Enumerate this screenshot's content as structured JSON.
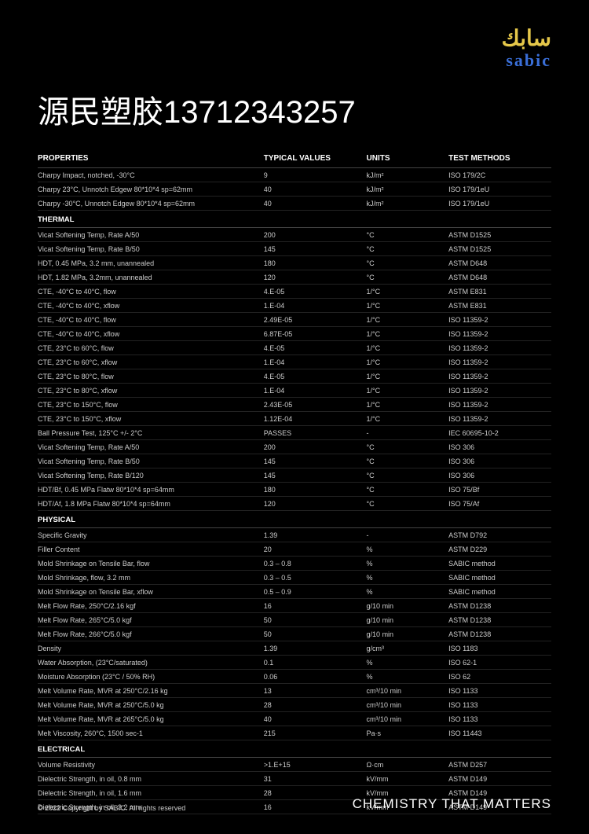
{
  "logo": {
    "arabic": "سابك",
    "latin": "sabic"
  },
  "title": "源民塑胶13712343257",
  "headers": {
    "properties": "PROPERTIES",
    "values": "TYPICAL VALUES",
    "units": "UNITS",
    "methods": "TEST METHODS"
  },
  "sections": [
    {
      "label": null,
      "rows": [
        {
          "p": "Charpy Impact, notched, -30°C",
          "v": "9",
          "u": "kJ/m²",
          "m": "ISO 179/2C"
        },
        {
          "p": "Charpy 23°C, Unnotch Edgew 80*10*4 sp=62mm",
          "v": "40",
          "u": "kJ/m²",
          "m": "ISO 179/1eU"
        },
        {
          "p": "Charpy -30°C, Unnotch Edgew 80*10*4 sp=62mm",
          "v": "40",
          "u": "kJ/m²",
          "m": "ISO 179/1eU"
        }
      ]
    },
    {
      "label": "THERMAL",
      "rows": [
        {
          "p": "Vicat Softening Temp, Rate A/50",
          "v": "200",
          "u": "°C",
          "m": "ASTM D1525"
        },
        {
          "p": "Vicat Softening Temp, Rate B/50",
          "v": "145",
          "u": "°C",
          "m": "ASTM D1525"
        },
        {
          "p": "HDT, 0.45 MPa, 3.2 mm, unannealed",
          "v": "180",
          "u": "°C",
          "m": "ASTM D648"
        },
        {
          "p": "HDT, 1.82 MPa, 3.2mm, unannealed",
          "v": "120",
          "u": "°C",
          "m": "ASTM D648"
        },
        {
          "p": "CTE, -40°C to 40°C, flow",
          "v": "4.E-05",
          "u": "1/°C",
          "m": "ASTM E831"
        },
        {
          "p": "CTE, -40°C to 40°C, xflow",
          "v": "1.E-04",
          "u": "1/°C",
          "m": "ASTM E831"
        },
        {
          "p": "CTE, -40°C to 40°C, flow",
          "v": "2.49E-05",
          "u": "1/°C",
          "m": "ISO 11359-2"
        },
        {
          "p": "CTE, -40°C to 40°C, xflow",
          "v": "6.87E-05",
          "u": "1/°C",
          "m": "ISO 11359-2"
        },
        {
          "p": "CTE, 23°C to 60°C, flow",
          "v": "4.E-05",
          "u": "1/°C",
          "m": "ISO 11359-2"
        },
        {
          "p": "CTE, 23°C to 60°C, xflow",
          "v": "1.E-04",
          "u": "1/°C",
          "m": "ISO 11359-2"
        },
        {
          "p": "CTE, 23°C to 80°C, flow",
          "v": "4.E-05",
          "u": "1/°C",
          "m": "ISO 11359-2"
        },
        {
          "p": "CTE, 23°C to 80°C, xflow",
          "v": "1.E-04",
          "u": "1/°C",
          "m": "ISO 11359-2"
        },
        {
          "p": "CTE, 23°C to 150°C, flow",
          "v": "2.43E-05",
          "u": "1/°C",
          "m": "ISO 11359-2"
        },
        {
          "p": "CTE, 23°C to 150°C, xflow",
          "v": "1.12E-04",
          "u": "1/°C",
          "m": "ISO 11359-2"
        },
        {
          "p": "Ball Pressure Test, 125°C +/- 2°C",
          "v": "PASSES",
          "u": "-",
          "m": "IEC 60695-10-2"
        },
        {
          "p": "Vicat Softening Temp, Rate A/50",
          "v": "200",
          "u": "°C",
          "m": "ISO 306"
        },
        {
          "p": "Vicat Softening Temp, Rate B/50",
          "v": "145",
          "u": "°C",
          "m": "ISO 306"
        },
        {
          "p": "Vicat Softening Temp, Rate B/120",
          "v": "145",
          "u": "°C",
          "m": "ISO 306"
        },
        {
          "p": "HDT/Bf, 0.45 MPa Flatw 80*10*4 sp=64mm",
          "v": "180",
          "u": "°C",
          "m": "ISO 75/Bf"
        },
        {
          "p": "HDT/Af, 1.8 MPa Flatw 80*10*4 sp=64mm",
          "v": "120",
          "u": "°C",
          "m": "ISO 75/Af"
        }
      ]
    },
    {
      "label": "PHYSICAL",
      "rows": [
        {
          "p": "Specific Gravity",
          "v": "1.39",
          "u": "-",
          "m": "ASTM D792"
        },
        {
          "p": "Filler Content",
          "v": "20",
          "u": "%",
          "m": "ASTM D229"
        },
        {
          "p": "Mold Shrinkage on Tensile Bar, flow",
          "v": "0.3 – 0.8",
          "u": "%",
          "m": "SABIC method"
        },
        {
          "p": "Mold Shrinkage, flow, 3.2 mm",
          "v": "0.3 – 0.5",
          "u": "%",
          "m": "SABIC method"
        },
        {
          "p": "Mold Shrinkage on Tensile Bar, xflow",
          "v": "0.5 – 0.9",
          "u": "%",
          "m": "SABIC method"
        },
        {
          "p": "Melt Flow Rate, 250°C/2.16 kgf",
          "v": "16",
          "u": "g/10 min",
          "m": "ASTM D1238"
        },
        {
          "p": "Melt Flow Rate, 265°C/5.0 kgf",
          "v": "50",
          "u": "g/10 min",
          "m": "ASTM D1238"
        },
        {
          "p": "Melt Flow Rate, 266°C/5.0 kgf",
          "v": "50",
          "u": "g/10 min",
          "m": "ASTM D1238"
        },
        {
          "p": "Density",
          "v": "1.39",
          "u": "g/cm³",
          "m": "ISO 1183"
        },
        {
          "p": "Water Absorption, (23°C/saturated)",
          "v": "0.1",
          "u": "%",
          "m": "ISO 62-1"
        },
        {
          "p": "Moisture Absorption (23°C / 50% RH)",
          "v": "0.06",
          "u": "%",
          "m": "ISO 62"
        },
        {
          "p": "Melt Volume Rate, MVR at 250°C/2.16 kg",
          "v": "13",
          "u": "cm³/10 min",
          "m": "ISO 1133"
        },
        {
          "p": "Melt Volume Rate, MVR at 250°C/5.0 kg",
          "v": "28",
          "u": "cm³/10 min",
          "m": "ISO 1133"
        },
        {
          "p": "Melt Volume Rate, MVR at 265°C/5.0 kg",
          "v": "40",
          "u": "cm³/10 min",
          "m": "ISO 1133"
        },
        {
          "p": "Melt Viscosity, 260°C, 1500 sec-1",
          "v": "215",
          "u": "Pa·s",
          "m": "ISO 11443"
        }
      ]
    },
    {
      "label": "ELECTRICAL",
      "rows": [
        {
          "p": "Volume Resistivity",
          "v": ">1.E+15",
          "u": "Ω·cm",
          "m": "ASTM D257"
        },
        {
          "p": "Dielectric Strength, in oil, 0.8 mm",
          "v": "31",
          "u": "kV/mm",
          "m": "ASTM D149"
        },
        {
          "p": "Dielectric Strength, in oil, 1.6 mm",
          "v": "28",
          "u": "kV/mm",
          "m": "ASTM D149"
        },
        {
          "p": "Dielectric Strength, in oil, 3.2 mm",
          "v": "16",
          "u": "kV/mm",
          "m": "ASTM D149"
        }
      ]
    }
  ],
  "footer": {
    "copyright": "© 2022 Copyright by SABIC. All rights reserved",
    "tagline": "CHEMISTRY THAT MATTERS"
  },
  "style": {
    "bg": "#000000",
    "fg": "#ffffff",
    "muted": "#cccccc",
    "rule": "#222222",
    "ruleStrong": "#444444",
    "logoGold": "#e6c84a",
    "logoBlue": "#3a6fd8",
    "titleSize": 40,
    "bodySize": 9,
    "headerSize": 10
  }
}
